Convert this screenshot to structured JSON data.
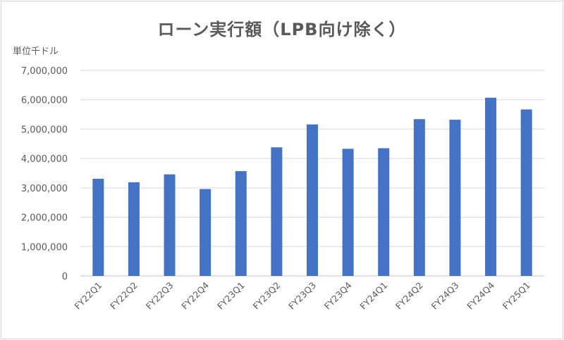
{
  "chart_data": {
    "type": "bar",
    "title": "ローン実行額（LPB向け除く）",
    "ylabel": "単位千ドル",
    "xlabel": "",
    "categories": [
      "FY22Q1",
      "FY22Q2",
      "FY22Q3",
      "FY22Q4",
      "FY23Q1",
      "FY23Q2",
      "FY23Q3",
      "FY23Q4",
      "FY24Q1",
      "FY24Q2",
      "FY24Q3",
      "FY24Q4",
      "FY25Q1"
    ],
    "values": [
      3310000,
      3190000,
      3460000,
      2960000,
      3570000,
      4380000,
      5160000,
      4330000,
      4350000,
      5340000,
      5320000,
      6070000,
      5670000
    ],
    "ylim": [
      0,
      7000000
    ],
    "yticks": [
      0,
      1000000,
      2000000,
      3000000,
      4000000,
      5000000,
      6000000,
      7000000
    ],
    "ytick_labels": [
      "0",
      "1,000,000",
      "2,000,000",
      "3,000,000",
      "4,000,000",
      "5,000,000",
      "6,000,000",
      "7,000,000"
    ],
    "grid": true,
    "bar_color": "#4472c4"
  }
}
